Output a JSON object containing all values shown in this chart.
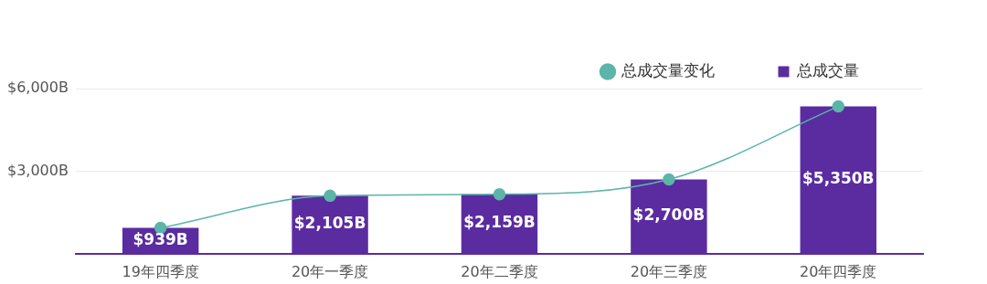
{
  "chart_data": {
    "type": "bar",
    "categories": [
      "19年四季度",
      "20年一季度",
      "20年二季度",
      "20年三季度",
      "20年四季度"
    ],
    "series": [
      {
        "name": "总成交量变化",
        "type": "line",
        "color": "#5bb5a8",
        "values": [
          939,
          2105,
          2159,
          2700,
          5350
        ],
        "marker": "circle"
      },
      {
        "name": "总成交量",
        "type": "bar",
        "color": "#5a2ca0",
        "values": [
          939,
          2105,
          2159,
          2700,
          5350
        ],
        "value_labels": [
          "$939B",
          "$2,105B",
          "$2,159B",
          "$2,700B",
          "$5,350B"
        ]
      }
    ],
    "ylim": [
      0,
      6000
    ],
    "yticks": [
      {
        "value": 0,
        "label": null
      },
      {
        "value": 3000,
        "label": "$3,000B"
      },
      {
        "value": 6000,
        "label": "$6,000B"
      }
    ],
    "grid": "y",
    "legend": "top right"
  }
}
